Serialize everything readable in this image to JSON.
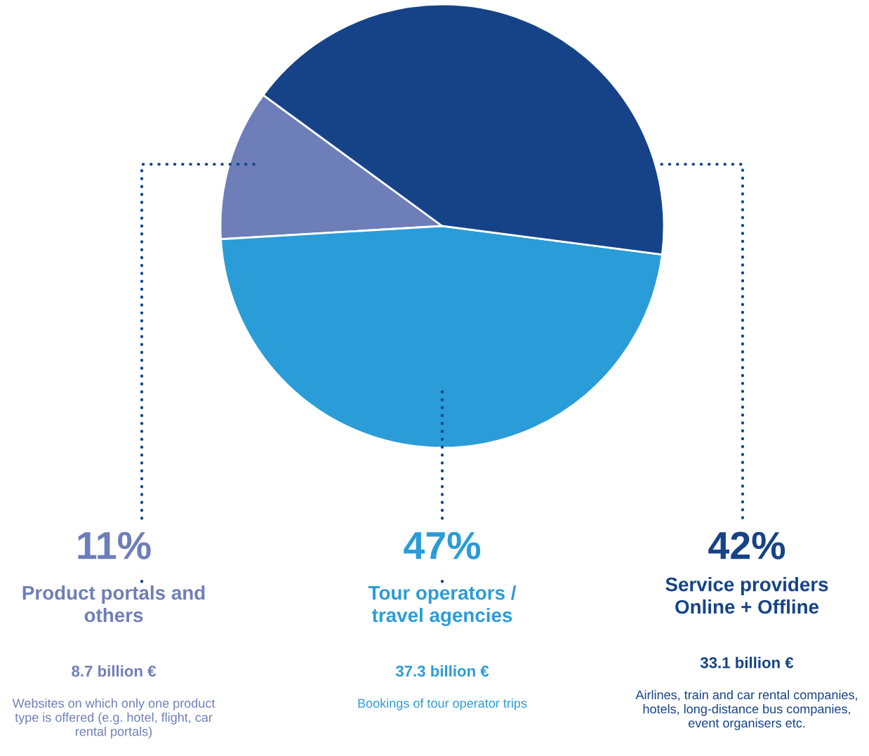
{
  "chart_data": {
    "type": "pie",
    "categories": [
      "Product portals and\nothers",
      "Tour operators /\ntravel agencies",
      "Service providers\nOnline + Offline"
    ],
    "values": [
      11,
      47,
      42
    ],
    "colors": [
      "#6e7eb8",
      "#2a9cd8",
      "#164388"
    ],
    "value_labels": [
      "11%",
      "47%",
      "42%"
    ],
    "annotations": [
      "8.7 billion €",
      "37.3 billion €",
      "33.1 billion €",
      "Websites on which only one product\ntype is offered (e.g. hotel, flight, car\nrental portals)",
      "Bookings of tour operator trips",
      "Airlines, train and car rental companies,\nhotels, long-distance bus companies,\nevent organisers etc."
    ],
    "legend": false
  }
}
